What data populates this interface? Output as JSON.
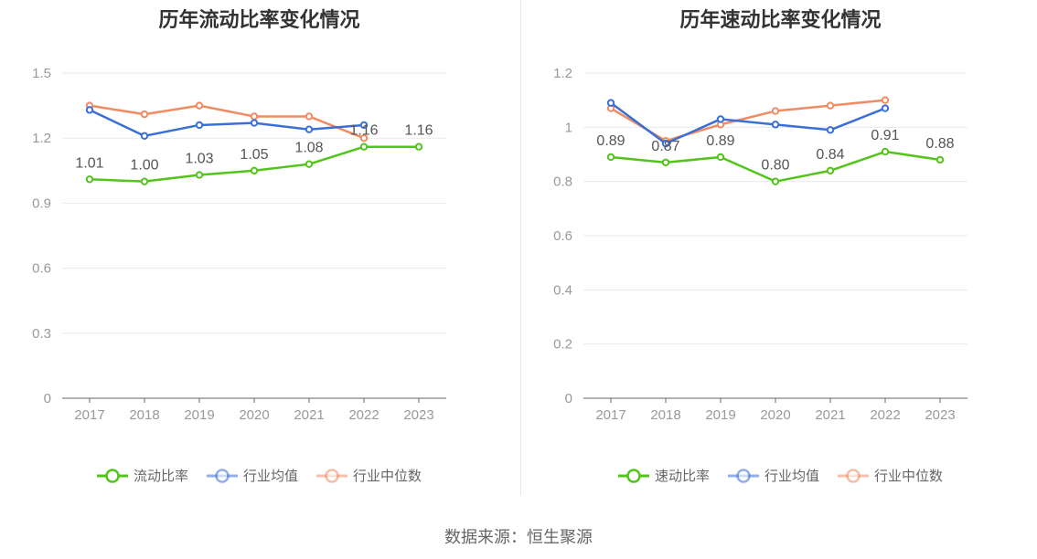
{
  "source": "数据来源：恒生聚源",
  "colors": {
    "company": "#52c41a",
    "avg": "#3a6fd8",
    "median": "#f08b63",
    "grid": "#e6e9f0",
    "axis": "#666666"
  },
  "chart_data": [
    {
      "type": "line",
      "title": "历年流动比率变化情况",
      "categories": [
        "2017",
        "2018",
        "2019",
        "2020",
        "2021",
        "2022",
        "2023"
      ],
      "ylim": [
        0,
        1.5
      ],
      "yticks": [
        "0",
        "0.3",
        "0.6",
        "0.9",
        "1.2",
        "1.5"
      ],
      "ytick_values": [
        0,
        0.3,
        0.6,
        0.9,
        1.2,
        1.5
      ],
      "series": [
        {
          "name": "流动比率",
          "key": "company",
          "values": [
            1.01,
            1.0,
            1.03,
            1.05,
            1.08,
            1.16,
            1.16
          ],
          "labels": [
            "1.01",
            "1.00",
            "1.03",
            "1.05",
            "1.08",
            "1.16",
            "1.16"
          ]
        },
        {
          "name": "行业均值",
          "key": "avg",
          "values": [
            1.33,
            1.21,
            1.26,
            1.27,
            1.24,
            1.26,
            null
          ]
        },
        {
          "name": "行业中位数",
          "key": "median",
          "values": [
            1.35,
            1.31,
            1.35,
            1.3,
            1.3,
            1.2,
            null
          ]
        }
      ]
    },
    {
      "type": "line",
      "title": "历年速动比率变化情况",
      "categories": [
        "2017",
        "2018",
        "2019",
        "2020",
        "2021",
        "2022",
        "2023"
      ],
      "ylim": [
        0,
        1.2
      ],
      "yticks": [
        "0",
        "0.2",
        "0.4",
        "0.6",
        "0.8",
        "1",
        "1.2"
      ],
      "ytick_values": [
        0,
        0.2,
        0.4,
        0.6,
        0.8,
        1.0,
        1.2
      ],
      "series": [
        {
          "name": "速动比率",
          "key": "company",
          "values": [
            0.89,
            0.87,
            0.89,
            0.8,
            0.84,
            0.91,
            0.88
          ],
          "labels": [
            "0.89",
            "0.87",
            "0.89",
            "0.80",
            "0.84",
            "0.91",
            "0.88"
          ]
        },
        {
          "name": "行业均值",
          "key": "avg",
          "values": [
            1.09,
            0.94,
            1.03,
            1.01,
            0.99,
            1.07,
            null
          ]
        },
        {
          "name": "行业中位数",
          "key": "median",
          "values": [
            1.07,
            0.95,
            1.01,
            1.06,
            1.08,
            1.1,
            null
          ]
        }
      ]
    }
  ]
}
